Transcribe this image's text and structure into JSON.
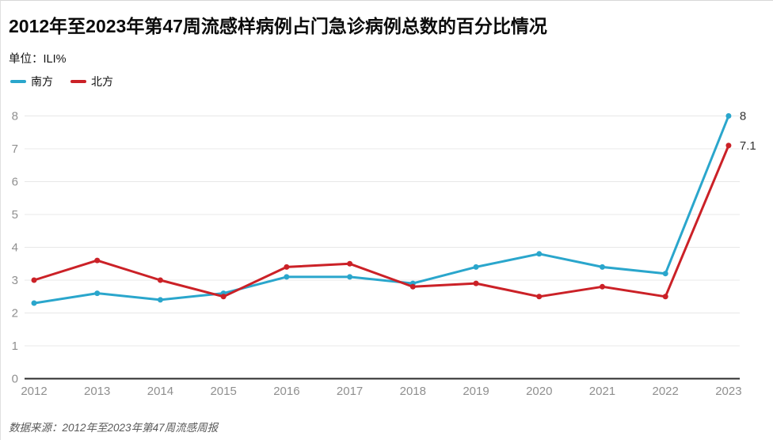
{
  "title": "2012年至2023年第47周流感样病例占门急诊病例总数的百分比情况",
  "unit_label": "单位：ILI%",
  "source": "数据来源：2012年至2023年第47周流感周报",
  "chart_data": {
    "type": "line",
    "categories": [
      "2012",
      "2013",
      "2014",
      "2015",
      "2016",
      "2017",
      "2018",
      "2019",
      "2020",
      "2021",
      "2022",
      "2023"
    ],
    "series": [
      {
        "name": "南方",
        "color": "#2aa6cc",
        "values": [
          2.3,
          2.6,
          2.4,
          2.6,
          3.1,
          3.1,
          2.9,
          3.4,
          3.8,
          3.4,
          3.2,
          8
        ],
        "end_label": "8"
      },
      {
        "name": "北方",
        "color": "#cb2127",
        "values": [
          3.0,
          3.6,
          3.0,
          2.5,
          3.4,
          3.5,
          2.8,
          2.9,
          2.5,
          2.8,
          2.5,
          7.1
        ],
        "end_label": "7.1"
      }
    ],
    "ylabel": "ILI%",
    "ylim": [
      0,
      8
    ],
    "ytick_interval": 1,
    "yticks": [
      0,
      1,
      2,
      3,
      4,
      5,
      6,
      7,
      8
    ],
    "grid": true,
    "legend_position": "top-left",
    "axis_label_color": "#8f8f8f",
    "gridline_color": "#e8e8e8",
    "baseline_color": "#2b2b2b",
    "end_label_color": "#333333"
  }
}
